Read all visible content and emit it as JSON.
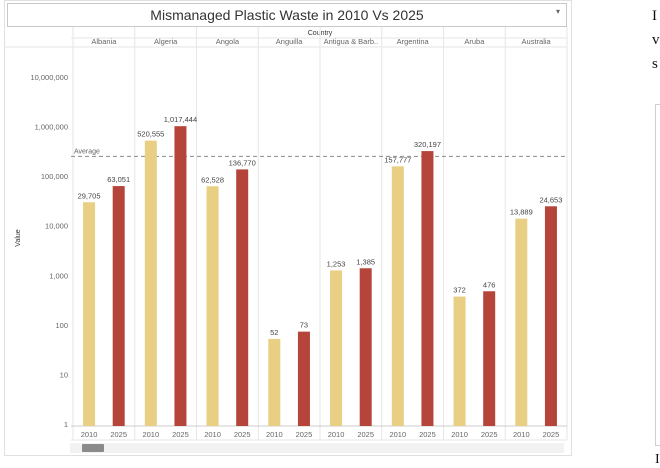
{
  "title": "Mismanaged Plastic Waste in 2010 Vs 2025",
  "icons": {
    "dropdown": "dropdown-caret-icon"
  },
  "side_text": {
    "lines": [
      "I",
      "v",
      "s"
    ],
    "bottom": "I"
  },
  "chart_data": {
    "type": "bar",
    "title": "Mismanaged Plastic Waste in 2010 Vs 2025",
    "column_header": "Country",
    "ylabel": "Value",
    "yscale": "log",
    "ylim": [
      1,
      10000000
    ],
    "y_ticks": [
      1,
      10,
      100,
      1000,
      10000,
      100000,
      1000000,
      10000000
    ],
    "y_tick_labels": [
      "1",
      "10",
      "100",
      "1,000",
      "10,000",
      "100,000",
      "1,000,000",
      "10,000,000"
    ],
    "x_labels": [
      "2010",
      "2025"
    ],
    "colors": {
      "2010": "#e8cf84",
      "2025": "#b5453a"
    },
    "reference_line": {
      "label": "Average",
      "value": 250000
    },
    "grid": false,
    "countries": [
      {
        "name": "Albania",
        "values": [
          29705,
          63051
        ],
        "labels": [
          "29,705",
          "63,051"
        ]
      },
      {
        "name": "Algeria",
        "values": [
          520555,
          1017444
        ],
        "labels": [
          "520,555",
          "1,017,444"
        ]
      },
      {
        "name": "Angola",
        "values": [
          62528,
          136770
        ],
        "labels": [
          "62,528",
          "136,770"
        ]
      },
      {
        "name": "Anguilla",
        "values": [
          52,
          73
        ],
        "labels": [
          "52",
          "73"
        ]
      },
      {
        "name": "Antigua & Barb..",
        "values": [
          1253,
          1385
        ],
        "labels": [
          "1,253",
          "1,385"
        ]
      },
      {
        "name": "Argentina",
        "values": [
          157777,
          320197
        ],
        "labels": [
          "157,777",
          "320,197"
        ]
      },
      {
        "name": "Aruba",
        "values": [
          372,
          476
        ],
        "labels": [
          "372",
          "476"
        ]
      },
      {
        "name": "Australia",
        "values": [
          13889,
          24653
        ],
        "labels": [
          "13,889",
          "24,653"
        ]
      }
    ]
  }
}
